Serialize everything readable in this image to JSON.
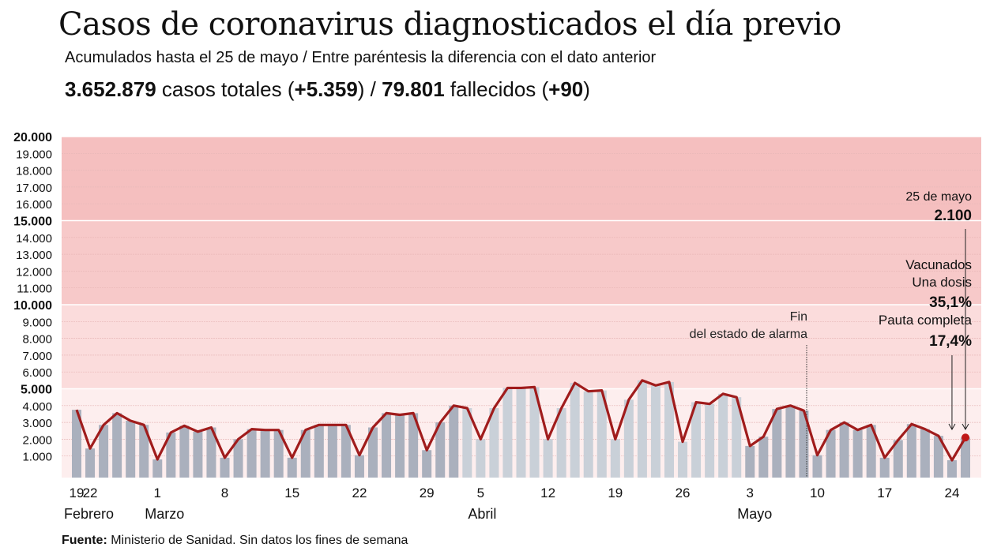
{
  "title": "Casos de coronavirus diagnosticados el día previo",
  "subtitle": "Acumulados hasta el 25 de mayo / Entre paréntesis la diferencia con el dato anterior",
  "totals": {
    "cases": "3.652.879",
    "cases_label": " casos totales (",
    "cases_diff": "+5.359",
    "sep": ") / ",
    "deaths": "79.801",
    "deaths_label": " fallecidos (",
    "deaths_diff": "+90",
    "close": ")"
  },
  "source": {
    "label": "Fuente:",
    "text": " Ministerio de Sanidad. Sin datos los fines de semana"
  },
  "annotations": {
    "last_date": "25 de mayo",
    "last_value": "2.100",
    "vacc_title": "Vacunados",
    "vacc_one": "Una dosis",
    "vacc_one_pct": "35,1%",
    "vacc_full": "Pauta completa",
    "vacc_full_pct": "17,4%",
    "alarm_1": "Fin",
    "alarm_2": "del estado de alarma"
  },
  "colors": {
    "line": "#a01c1c",
    "bar": "#aab0bd",
    "bar_light": "#c9d0d8",
    "band1": "#fdeeee",
    "band2": "#fbdcdc",
    "band3": "#f7c9c9",
    "band4": "#f5bfbf"
  },
  "chart_data": {
    "type": "bar+line",
    "ylim": [
      0,
      20000
    ],
    "yticks": [
      "1.000",
      "2.000",
      "3.000",
      "4.000",
      "5.000",
      "6.000",
      "7.000",
      "8.000",
      "9.000",
      "10.000",
      "11.000",
      "12.000",
      "13.000",
      "14.000",
      "15.000",
      "16.000",
      "17.000",
      "18.000",
      "19.000",
      "20.000"
    ],
    "grid": true,
    "dates": [
      "19 feb",
      "22 feb",
      "23 feb",
      "24 feb",
      "25 feb",
      "26 feb",
      "1 mar",
      "2 mar",
      "3 mar",
      "4 mar",
      "5 mar",
      "8 mar",
      "9 mar",
      "10 mar",
      "11 mar",
      "12 mar",
      "15 mar",
      "16 mar",
      "17 mar",
      "18 mar",
      "19 mar",
      "22 mar",
      "23 mar",
      "24 mar",
      "25 mar",
      "26 mar",
      "29 mar",
      "30 mar",
      "31 mar",
      "1 abr",
      "5 abr",
      "6 abr",
      "7 abr",
      "8 abr",
      "9 abr",
      "12 abr",
      "13 abr",
      "14 abr",
      "15 abr",
      "16 abr",
      "19 abr",
      "20 abr",
      "21 abr",
      "22 abr",
      "23 abr",
      "26 abr",
      "27 abr",
      "28 abr",
      "29 abr",
      "30 abr",
      "3 may",
      "4 may",
      "5 may",
      "6 may",
      "7 may",
      "10 may",
      "11 may",
      "12 may",
      "13 may",
      "14 may",
      "17 may",
      "18 may",
      "19 may",
      "20 may",
      "21 may",
      "24 may",
      "25 may"
    ],
    "values": [
      3750,
      1450,
      2850,
      3550,
      3100,
      2850,
      800,
      2400,
      2800,
      2450,
      2700,
      900,
      2000,
      2600,
      2550,
      2550,
      900,
      2550,
      2850,
      2850,
      2850,
      1050,
      2700,
      3550,
      3450,
      3550,
      1350,
      3000,
      4000,
      3850,
      2000,
      3850,
      5050,
      5050,
      5100,
      2000,
      3850,
      5350,
      4850,
      4900,
      2000,
      4350,
      5500,
      5200,
      5400,
      1850,
      4200,
      4100,
      4700,
      4500,
      1600,
      2150,
      3800,
      4000,
      3700,
      1050,
      2550,
      3000,
      2550,
      2850,
      900,
      1950,
      2900,
      2600,
      2200,
      750,
      2100
    ],
    "xtick_labels": [
      {
        "i": 0,
        "t": "19"
      },
      {
        "i": 1,
        "t": "22"
      },
      {
        "i": 6,
        "t": "1"
      },
      {
        "i": 11,
        "t": "8"
      },
      {
        "i": 16,
        "t": "15"
      },
      {
        "i": 21,
        "t": "22"
      },
      {
        "i": 26,
        "t": "29"
      },
      {
        "i": 30,
        "t": "5"
      },
      {
        "i": 35,
        "t": "12"
      },
      {
        "i": 40,
        "t": "19"
      },
      {
        "i": 45,
        "t": "26"
      },
      {
        "i": 50,
        "t": "3"
      },
      {
        "i": 55,
        "t": "10"
      },
      {
        "i": 60,
        "t": "17"
      },
      {
        "i": 65,
        "t": "24"
      }
    ],
    "month_labels": [
      {
        "i": 0,
        "t": "Febrero"
      },
      {
        "i": 6,
        "t": "Marzo"
      },
      {
        "i": 30,
        "t": "Abril"
      },
      {
        "i": 50,
        "t": "Mayo"
      }
    ]
  }
}
